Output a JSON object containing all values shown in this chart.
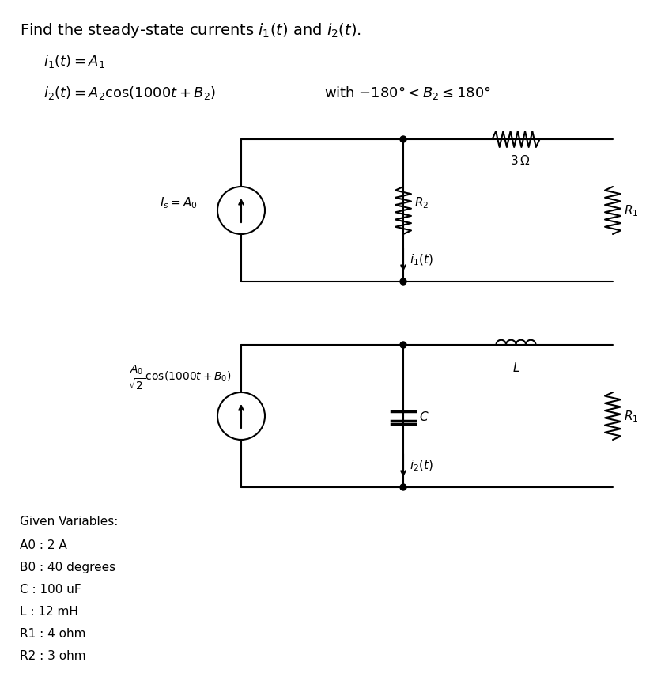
{
  "title_text": "Find the steady-state currents $i_1(t)$ and $i_2(t)$.",
  "eq1": "$i_1(t) = A_1$",
  "eq2": "$i_2(t) = A_2\\mathrm{cos}(1000t + B_2)$",
  "eq2_condition": "with $-180° < B_2 \\leq 180°$",
  "source1_label": "$I_s = A_0$",
  "source2_label": "$\\dfrac{A_0}{\\sqrt{2}}\\mathrm{cos}(1000t + B_0)$",
  "i1_label": "$i_1(t)$",
  "i2_label": "$i_2(t)$",
  "R2_label": "$R_2$",
  "R1_label": "$R_1$",
  "R1b_label": "$R_1$",
  "R3_label": "$3\\,\\Omega$",
  "L_label": "$L$",
  "C_label": "$C$",
  "given_title": "Given Variables:",
  "given_vars": [
    "A0 : 2 A",
    "B0 : 40 degrees",
    "C : 100 uF",
    "L : 12 mH",
    "R1 : 4 ohm",
    "R2 : 3 ohm"
  ],
  "line_color": "#000000",
  "bg_color": "#ffffff",
  "title_fontsize": 14,
  "eq_fontsize": 13,
  "label_fontsize": 12,
  "given_fontsize": 11
}
